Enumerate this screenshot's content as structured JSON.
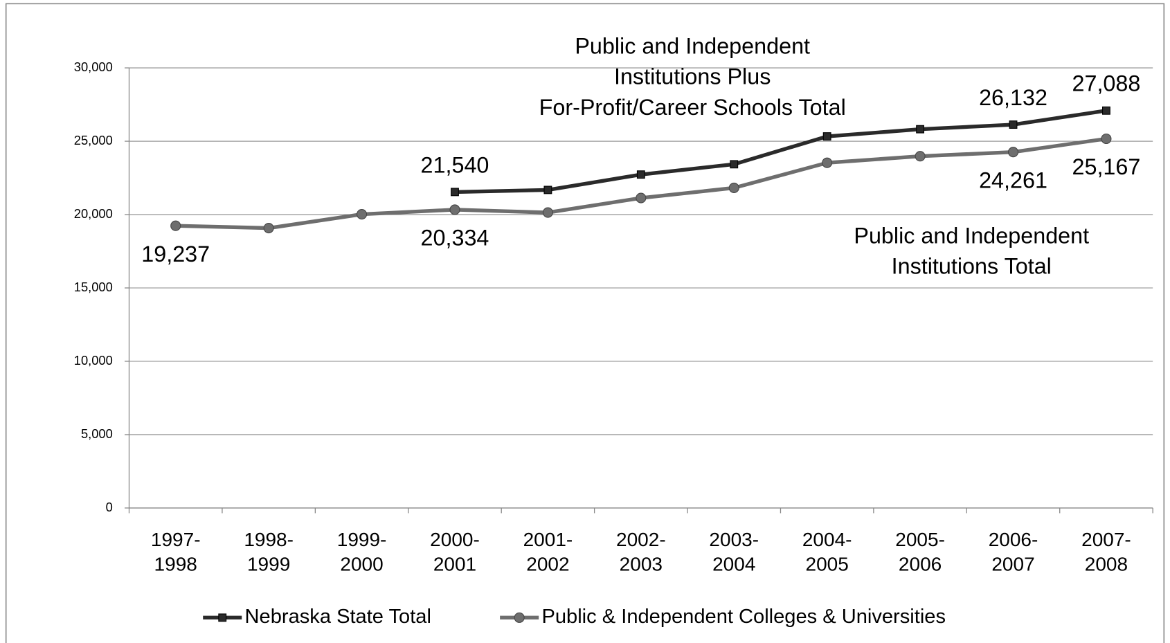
{
  "chart_data": {
    "type": "line",
    "categories": [
      [
        "1997-",
        "1998"
      ],
      [
        "1998-",
        "1999"
      ],
      [
        "1999-",
        "2000"
      ],
      [
        "2000-",
        "2001"
      ],
      [
        "2001-",
        "2002"
      ],
      [
        "2002-",
        "2003"
      ],
      [
        "2003-",
        "2004"
      ],
      [
        "2004-",
        "2005"
      ],
      [
        "2005-",
        "2006"
      ],
      [
        "2006-",
        "2007"
      ],
      [
        "2007-",
        "2008"
      ]
    ],
    "series": [
      {
        "name": "Nebraska State Total",
        "color": "#2a2a2a",
        "marker": "square",
        "values": [
          null,
          null,
          null,
          21540,
          21680,
          22730,
          23430,
          25330,
          25820,
          26132,
          27088
        ],
        "value_labels": [
          null,
          null,
          null,
          "21,540",
          null,
          null,
          null,
          null,
          null,
          "26,132",
          "27,088"
        ]
      },
      {
        "name": "Public & Independent Colleges & Universities",
        "color": "#6e6e6e",
        "marker": "circle",
        "values": [
          19237,
          19080,
          20020,
          20334,
          20140,
          21130,
          21820,
          23530,
          23980,
          24261,
          25167
        ],
        "value_labels": [
          "19,237",
          null,
          null,
          "20,334",
          null,
          null,
          null,
          null,
          null,
          "24,261",
          "25,167"
        ]
      }
    ],
    "annotations": [
      [
        "Public and Independent",
        "Institutions Plus",
        "For-Profit/Career Schools Total"
      ],
      [
        "Public and Independent",
        "Institutions Total"
      ]
    ],
    "ylim": [
      0,
      30000
    ],
    "yticks": [
      0,
      {
        "value": 5000,
        "label": "5,000"
      },
      {
        "value": 10000,
        "label": "10,000"
      },
      {
        "value": 15000,
        "label": "15,000"
      },
      {
        "value": 20000,
        "label": "20,000"
      },
      {
        "value": 25000,
        "label": "25,000"
      },
      {
        "value": 30000,
        "label": "30,000"
      }
    ],
    "grid": true,
    "legend": "bottom"
  }
}
